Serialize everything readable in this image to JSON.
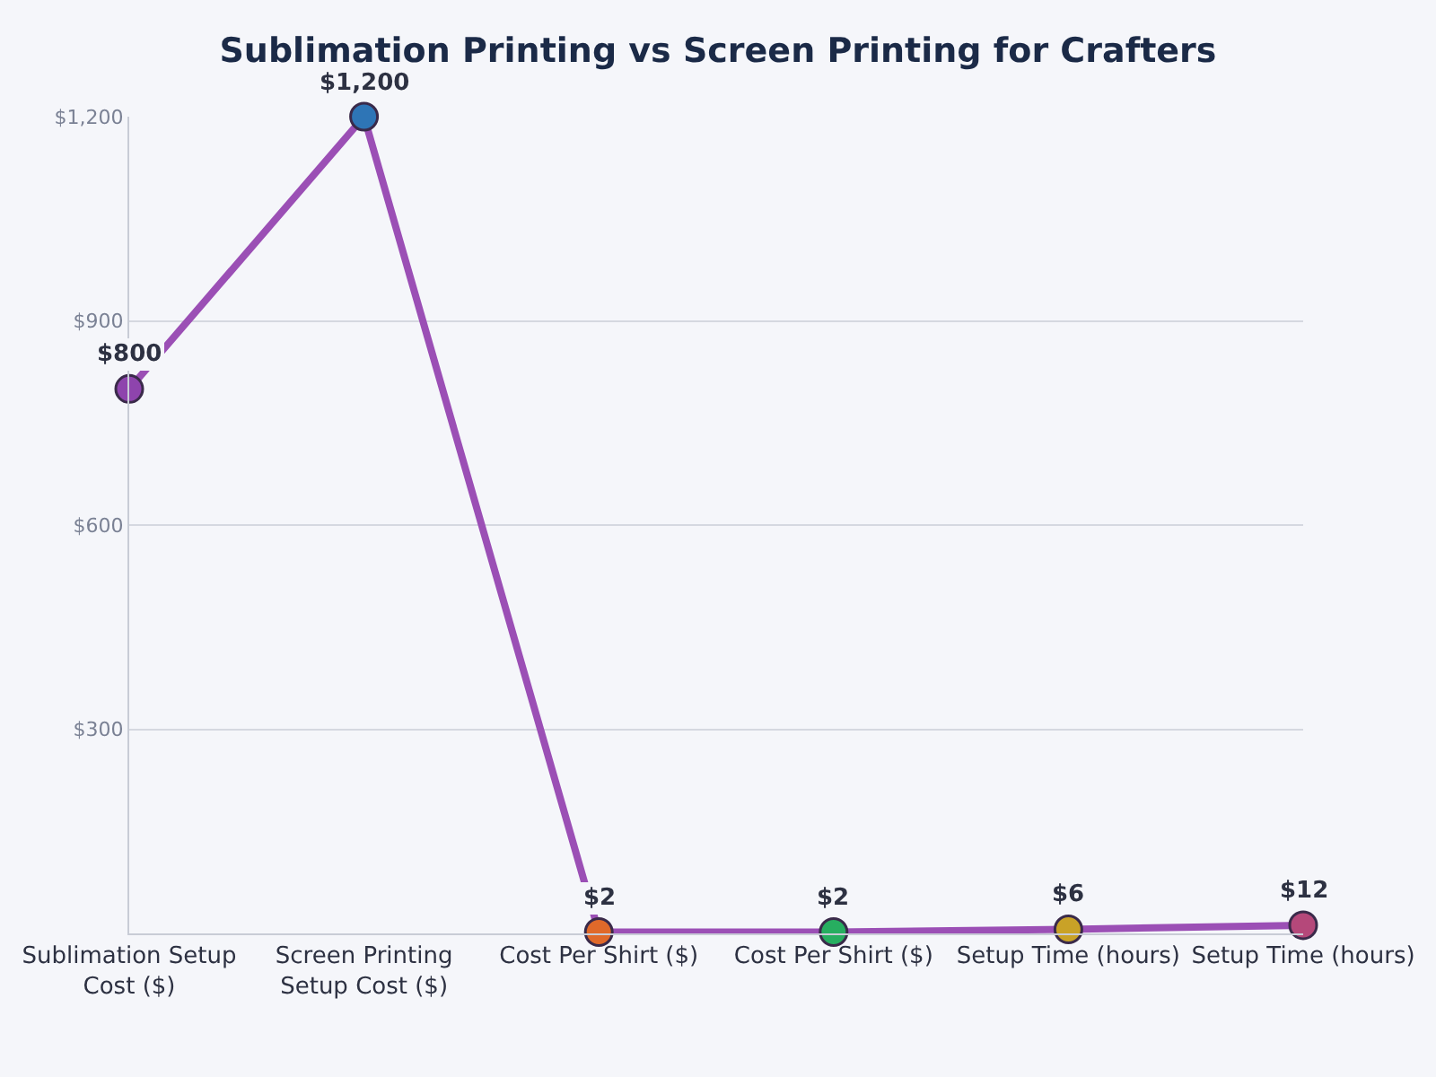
{
  "chart_data": {
    "type": "line",
    "title": "Sublimation Printing vs Screen Printing for Crafters",
    "categories": [
      "Sublimation Setup Cost ($)",
      "Screen Printing Setup Cost ($)",
      "Cost Per Shirt ($)",
      "Cost Per Shirt ($)",
      "Setup Time (hours)",
      "Setup Time (hours)"
    ],
    "series": [
      {
        "color": "#9b4fb5",
        "colors": [
          "#8e44ad",
          "#2e75b6",
          "#e0692a",
          "#27ae60",
          "#c9a227",
          "#b5487a"
        ],
        "values": [
          800,
          1200,
          2,
          2,
          6,
          12
        ],
        "value_labels": [
          "$800",
          "$1,200",
          "$2",
          "$2",
          "$6",
          "$12"
        ]
      }
    ],
    "ylim": [
      0,
      1200
    ],
    "yticks": [
      {
        "value": 300,
        "label": "$300"
      },
      {
        "value": 600,
        "label": "$600"
      },
      {
        "value": 900,
        "label": "$900"
      },
      {
        "value": 1200,
        "label": "$1,200"
      }
    ],
    "grid": "y",
    "marker": "circle",
    "line_style": "solid"
  }
}
